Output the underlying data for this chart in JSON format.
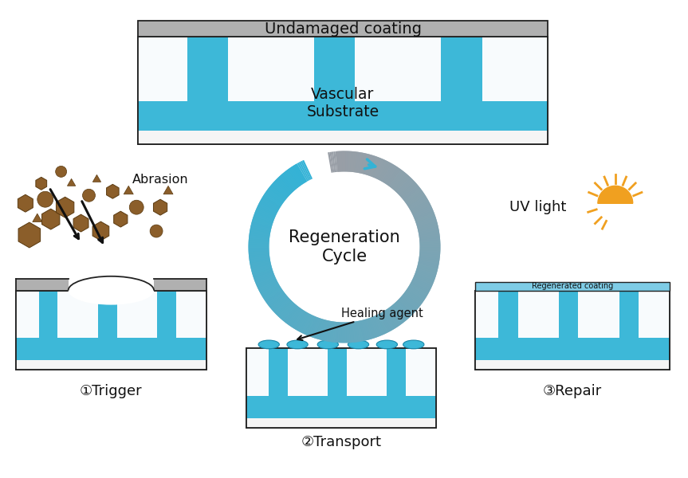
{
  "bg_color": "#ffffff",
  "blue": "#3db8d8",
  "blue_light": "#cce8f4",
  "blue_mid": "#5bc8e0",
  "gray_coat": "#b0b0b0",
  "gray_light": "#e0e0e0",
  "sub_bg": "#f0f8fc",
  "sub_bg2": "#e8f4f8",
  "brown": "#8b5e2a",
  "brown_dark": "#5a3a10",
  "orange": "#f0a020",
  "yellow": "#f5cc30",
  "title_text": "Undamaged coating",
  "vascular_text": "Vascular\nSubstrate",
  "trigger_label": "①Trigger",
  "transport_label": "②Transport",
  "repair_label": "③Repair",
  "regen_text": "Regeneration\nCycle",
  "abrasion_text": "Abrasion",
  "healing_text": "Healing agent",
  "uv_text": "UV light",
  "regen_coating_text": "Regenerated coating"
}
